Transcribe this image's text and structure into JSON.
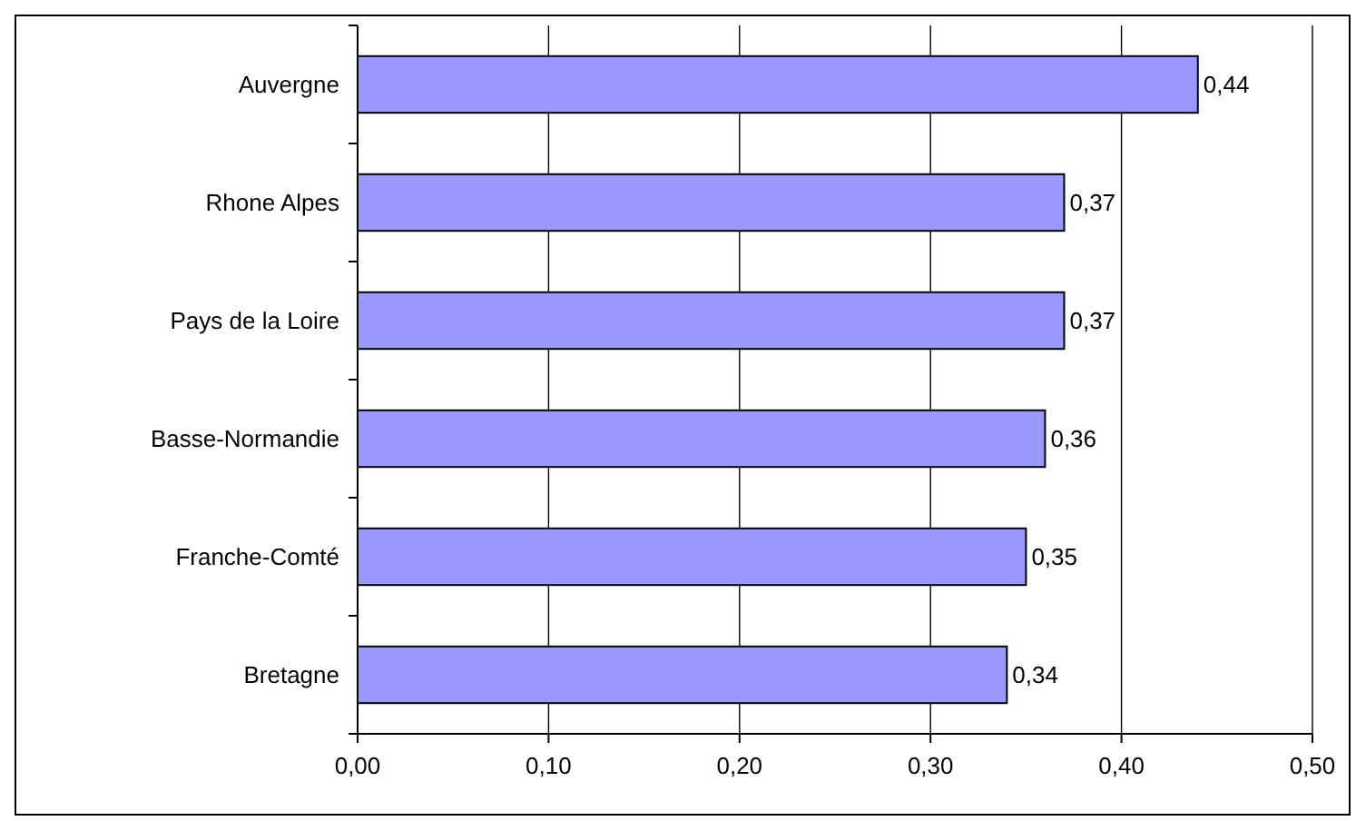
{
  "chart_data": {
    "type": "bar",
    "orientation": "horizontal",
    "categories": [
      "Auvergne",
      "Rhone Alpes",
      "Pays de la Loire",
      "Basse-Normandie",
      "Franche-Comté",
      "Bretagne"
    ],
    "values": [
      0.44,
      0.37,
      0.37,
      0.36,
      0.35,
      0.34
    ],
    "value_labels": [
      "0,44",
      "0,37",
      "0,37",
      "0,36",
      "0,35",
      "0,34"
    ],
    "color": "#9999ff",
    "xlim": [
      0,
      0.5
    ],
    "xticks": [
      {
        "value": 0,
        "label": "0,00"
      },
      {
        "value": 0.1,
        "label": "0,10"
      },
      {
        "value": 0.2,
        "label": "0,20"
      },
      {
        "value": 0.3,
        "label": "0,30"
      },
      {
        "value": 0.4,
        "label": "0,40"
      },
      {
        "value": 0.5,
        "label": "0,50"
      }
    ],
    "grid": "x"
  }
}
